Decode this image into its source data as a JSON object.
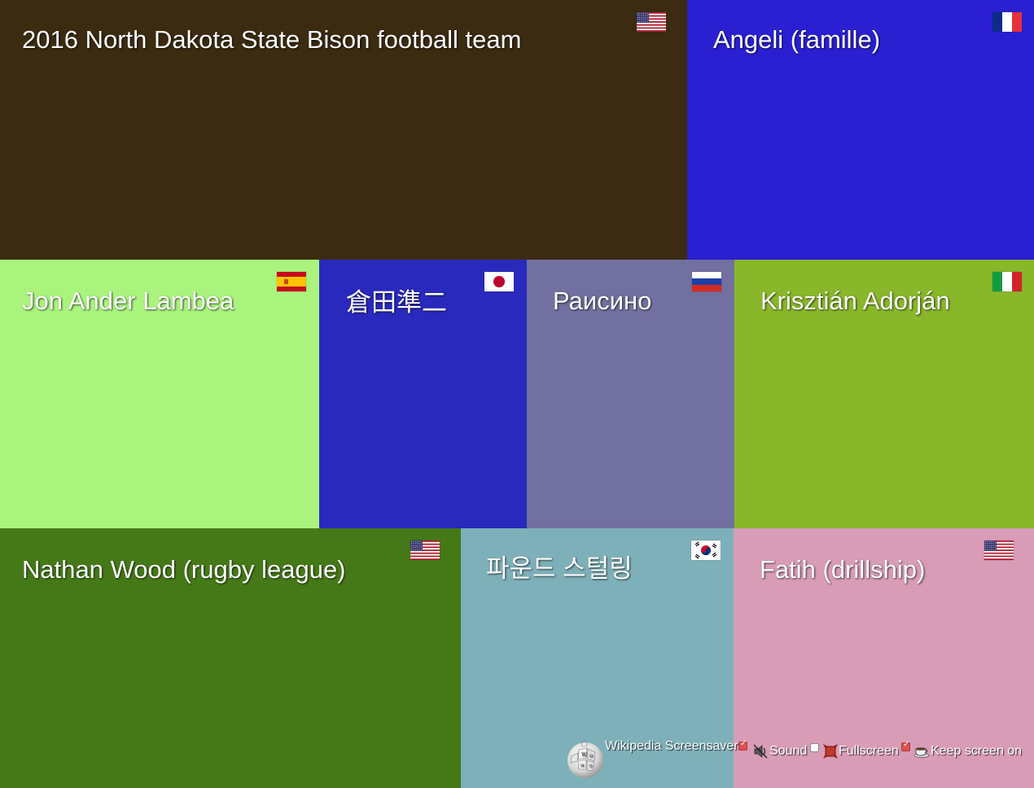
{
  "tiles": [
    {
      "id": "north-dakota",
      "title": "2016 North Dakota State Bison football team",
      "bg": "#3b2b10",
      "flag": "us"
    },
    {
      "id": "angeli",
      "title": "Angeli (famille)",
      "bg": "#2a20d2",
      "flag": "fr"
    },
    {
      "id": "jon-ander",
      "title": "Jon Ander Lambea",
      "bg": "#aaf47d",
      "flag": "es"
    },
    {
      "id": "kurata",
      "title": "倉田準二",
      "bg": "#2a29be",
      "flag": "jp"
    },
    {
      "id": "raisino",
      "title": "Раисино",
      "bg": "#7270a0",
      "flag": "ru"
    },
    {
      "id": "krisztian",
      "title": "Krisztián Adorján",
      "bg": "#88b72a",
      "flag": "it"
    },
    {
      "id": "nathan-wood",
      "title": "Nathan Wood (rugby league)",
      "bg": "#457918",
      "flag": "us"
    },
    {
      "id": "pound-sterling",
      "title": "파운드 스털링",
      "bg": "#7eb0b9",
      "flag": "kr"
    },
    {
      "id": "fatih",
      "title": "Fatih (drillship)",
      "bg": "#d99cb7",
      "flag": "us"
    }
  ],
  "footer": {
    "title": "Wikipedia Screensaver",
    "options": [
      {
        "id": "sound",
        "label": "Sound",
        "checked": false,
        "icon": "speaker-icon"
      },
      {
        "id": "fullscreen",
        "label": "Fullscreen",
        "checked": true,
        "icon": "fullscreen-icon"
      },
      {
        "id": "keep-screen-on",
        "label": "Keep screen on",
        "checked": true,
        "icon": "coffee-cup-icon"
      }
    ],
    "title_checked": true
  }
}
